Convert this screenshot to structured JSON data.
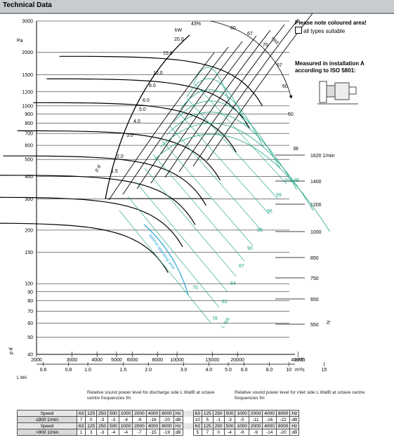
{
  "header": {
    "title": "Technical Data"
  },
  "note": {
    "coloured": "Please note coloured area!",
    "legend": "all types suitable",
    "measured_1": "Measured in installation A",
    "measured_2": "according to ISO 5801:"
  },
  "colors": {
    "grid": "#000000",
    "efficiency": "#1fa487",
    "sound": "#1fa487",
    "system_curve": "#2aa6d6",
    "header": "#c9ccce"
  },
  "chart_data": {
    "type": "line",
    "title": "",
    "y_unit": "Pa",
    "y_scale": "log",
    "y_ticks": [
      40,
      50,
      60,
      70,
      80,
      90,
      100,
      150,
      200,
      300,
      400,
      500,
      600,
      700,
      800,
      900,
      1000,
      1200,
      1500,
      2000,
      3000
    ],
    "x_scale": "log",
    "x_unit": "m³/h",
    "x_ticks": [
      2000,
      3000,
      4000,
      5000,
      6000,
      8000,
      10000,
      15000,
      20000,
      40000
    ],
    "x_tick_labels": [
      "2000",
      "3000",
      "4000",
      "5000",
      "6000",
      "8000",
      "10000",
      "15000",
      "20000",
      "40000"
    ],
    "x2_unit": "m³/s",
    "x2_ticks": [
      0.6,
      0.8,
      1.0,
      1.5,
      2.0,
      3.0,
      4.0,
      5.0,
      6.0,
      8.0,
      10,
      15
    ],
    "x2_tick_labels": [
      "0.6",
      "0.8",
      "1.0",
      "1.5",
      "2.0",
      "3.0",
      "4.0",
      "5.0",
      "6.0",
      "8.0",
      "10",
      "15"
    ],
    "speed_unit": "1/min",
    "speed_lines": [
      1620,
      1400,
      1200,
      1000,
      850,
      750,
      650,
      550
    ],
    "speed_top_label": "1620 1/min",
    "power_unit": "kW",
    "power_labels": [
      "20.0",
      "15.0",
      "10.0",
      "8.0",
      "6.0",
      "5.0",
      "4.0",
      "3.0",
      "2.0",
      "1.5"
    ],
    "efficiency_labels": [
      "43%",
      "60",
      "67",
      "70",
      "67",
      "60",
      "50",
      "38"
    ],
    "sound_labels": [
      "102 dB",
      "99",
      "96",
      "93",
      "90",
      "87",
      "84",
      "81",
      "78",
      "75"
    ],
    "labels": {
      "pd": "p d",
      "ptf": "p tf",
      "lwa": "L WA",
      "eta": "ηtot",
      "n": "N",
      "optimal": "optimal operating area",
      "lw_side": "Pa"
    }
  },
  "table": {
    "caption_discharge": "Relative sound power level for discharge side L WatB at octave centre frequencies fm",
    "caption_inlet": "Relative sound power level for inlet side L WatB at octave centre frequencies fm",
    "rows": [
      {
        "label": "Speed",
        "left": [
          "63",
          "125",
          "250",
          "500",
          "1000",
          "2000",
          "4000",
          "8000",
          "Hz"
        ],
        "right": [
          "63",
          "125",
          "250",
          "500",
          "1000",
          "2000",
          "4000",
          "8000",
          "Hz"
        ]
      },
      {
        "label": "≤900 1/min",
        "left": [
          "7",
          "0",
          "-3",
          "-3",
          "-4",
          "-9",
          "-16",
          "-20",
          "dB"
        ],
        "right": [
          "10",
          "5",
          "-1",
          "-3",
          "-5",
          "-11",
          "-16",
          "-22",
          "dB"
        ]
      },
      {
        "label": "Speed",
        "left": [
          "63",
          "125",
          "250",
          "500",
          "1000",
          "2000",
          "4000",
          "8000",
          "Hz"
        ],
        "right": [
          "63",
          "125",
          "250",
          "500",
          "1000",
          "2000",
          "4000",
          "8000",
          "Hz"
        ]
      },
      {
        "label": ">900 1/min",
        "left": [
          "1",
          "3",
          "-3",
          "-4",
          "-4",
          "-7",
          "-15",
          "-19",
          "dB"
        ],
        "right": [
          "5",
          "7",
          "0",
          "-4",
          "-6",
          "-9",
          "-14",
          "-20",
          "dB"
        ]
      }
    ]
  }
}
